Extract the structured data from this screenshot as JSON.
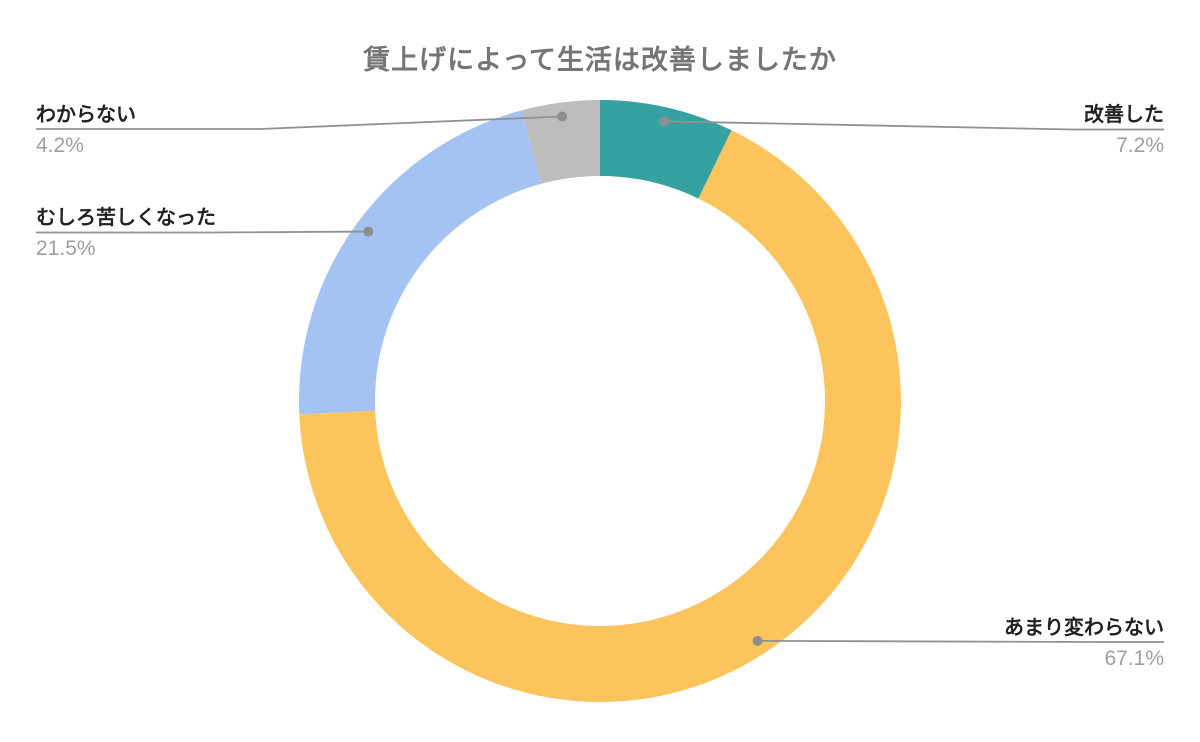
{
  "title": "賃上げによって生活は改善しましたか",
  "chart_data": {
    "type": "pie",
    "subtype": "donut",
    "title": "賃上げによって生活は改善しましたか",
    "units": "%",
    "total": 100,
    "start_angle_deg": 0,
    "clockwise": true,
    "inner_radius_ratio": 0.7475,
    "legend_position": "none",
    "labels_position": "outside-with-leader-lines",
    "slices": [
      {
        "label": "改善した",
        "value": 7.2,
        "percent_label": "7.2%",
        "color": "#35a2a1"
      },
      {
        "label": "あまり変わらない",
        "value": 67.1,
        "percent_label": "67.1%",
        "color": "#fbc45c"
      },
      {
        "label": "むしろ苦しくなった",
        "value": 21.5,
        "percent_label": "21.5%",
        "color": "#a4c3f3"
      },
      {
        "label": "わからない",
        "value": 4.2,
        "percent_label": "4.2%",
        "color": "#bdbdbd"
      }
    ],
    "style_colors": {
      "background": "#ffffff",
      "title_text": "#757575",
      "label_text": "#212121",
      "percent_text": "#9e9e9e",
      "leader_line": "#919191",
      "leader_dot": "#8e8e8e"
    }
  }
}
